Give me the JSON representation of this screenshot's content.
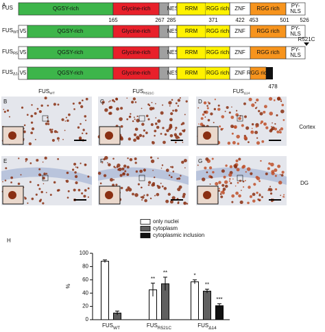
{
  "panel_a": {
    "label": "A",
    "rows": [
      {
        "name": "FUS"
      },
      {
        "name": "FUS",
        "sub": "WT"
      },
      {
        "name": "FUS",
        "sub": "R521C"
      },
      {
        "name": "FUS",
        "sub": "Δ14"
      }
    ],
    "tag": "V5",
    "domains": [
      "QGSY-rich",
      "Glycine-rich",
      "NES",
      "RRM",
      "RGG rich",
      "ZNF",
      "RGG rich",
      [
        "PY-",
        "NLS"
      ]
    ],
    "positions": [
      165,
      267,
      285,
      371,
      422,
      453,
      501,
      526
    ],
    "mutation": "R521C",
    "truncation": 478
  },
  "micrographs": {
    "panels": [
      "B",
      "C",
      "D",
      "E",
      "F",
      "G"
    ],
    "columns": [
      {
        "name": "FUS",
        "sub": "WT"
      },
      {
        "name": "FUS",
        "sub": "R521C"
      },
      {
        "name": "FUS",
        "sub": "Δ14"
      }
    ],
    "regions": [
      "Cortex",
      "DG"
    ]
  },
  "chart_data": {
    "type": "bar",
    "label": "H",
    "y_label": "%",
    "categories": [
      "FUS",
      "FUS",
      "FUS"
    ],
    "category_subscripts": [
      "WT",
      "R521C",
      "Δ14"
    ],
    "ylim": [
      0,
      100
    ],
    "yticks": [
      0,
      20,
      40,
      60,
      80,
      100
    ],
    "legend": "top",
    "series": [
      {
        "name": "only nuclei",
        "color": "#ffffff",
        "values": [
          88,
          45,
          57
        ],
        "errors": [
          2,
          10,
          3
        ],
        "significance": [
          null,
          "**",
          "*"
        ]
      },
      {
        "name": "cytoplasm",
        "color": "#606060",
        "values": [
          10,
          54,
          43
        ],
        "errors": [
          3,
          10,
          3
        ],
        "significance": [
          null,
          "**",
          "**"
        ]
      },
      {
        "name": "cytoplasmic inclusion",
        "color": "#111111",
        "values": [
          null,
          null,
          21
        ],
        "errors": [
          null,
          null,
          3
        ],
        "significance": [
          null,
          null,
          "***"
        ]
      }
    ]
  }
}
